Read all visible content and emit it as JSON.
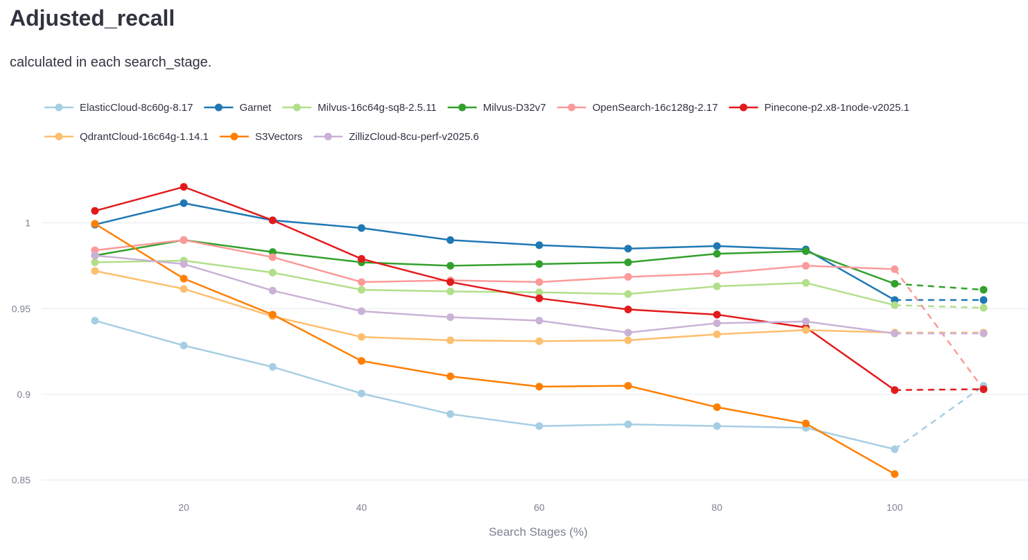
{
  "page": {
    "title": "Adjusted_recall",
    "subtitle": "calculated in each search_stage."
  },
  "chart_data": {
    "type": "line",
    "xlabel": "Search Stages (%)",
    "ylabel": "",
    "xlim": [
      4,
      115
    ],
    "ylim": [
      0.843,
      1.035
    ],
    "x_ticks": [
      20,
      40,
      60,
      80,
      100
    ],
    "y_ticks": [
      0.85,
      0.9,
      0.95,
      1
    ],
    "grid": true,
    "legend_position": "top",
    "x": [
      10,
      20,
      30,
      40,
      50,
      60,
      70,
      80,
      90,
      100
    ],
    "final_x": 110,
    "series": [
      {
        "name": "ElasticCloud-8c60g-8.17",
        "color": "#a6cee3",
        "values": [
          0.943,
          0.9285,
          0.916,
          0.9005,
          0.8885,
          0.8815,
          0.8825,
          0.8815,
          0.8805,
          0.868
        ],
        "final": 0.905
      },
      {
        "name": "Garnet",
        "color": "#1f78b4",
        "values": [
          0.999,
          1.0115,
          1.0015,
          0.997,
          0.99,
          0.987,
          0.985,
          0.9865,
          0.9845,
          0.955
        ],
        "final": 0.955
      },
      {
        "name": "Milvus-16c64g-sq8-2.5.11",
        "color": "#b2df8a",
        "values": [
          0.977,
          0.978,
          0.971,
          0.961,
          0.96,
          0.9595,
          0.9585,
          0.963,
          0.965,
          0.952
        ],
        "final": 0.9505
      },
      {
        "name": "Milvus-D32v7",
        "color": "#33a02c",
        "values": [
          0.981,
          0.99,
          0.983,
          0.977,
          0.975,
          0.976,
          0.977,
          0.982,
          0.9835,
          0.9645
        ],
        "final": 0.961
      },
      {
        "name": "OpenSearch-16c128g-2.17",
        "color": "#fb9a99",
        "values": [
          0.984,
          0.99,
          0.98,
          0.9655,
          0.9665,
          0.9655,
          0.9685,
          0.9705,
          0.975,
          0.973
        ],
        "final": 0.903
      },
      {
        "name": "Pinecone-p2.x8-1node-v2025.1",
        "color": "#e31a1c",
        "values": [
          1.007,
          1.021,
          1.0015,
          0.979,
          0.9655,
          0.956,
          0.9495,
          0.9465,
          0.939,
          0.9025
        ],
        "final": 0.903
      },
      {
        "name": "QdrantCloud-16c64g-1.14.1",
        "color": "#fdbf6f",
        "values": [
          0.972,
          0.9615,
          0.9455,
          0.9335,
          0.9315,
          0.931,
          0.9315,
          0.935,
          0.9375,
          0.936
        ],
        "final": 0.936
      },
      {
        "name": "S3Vectors",
        "color": "#ff7f00",
        "values": [
          0.9995,
          0.9675,
          0.9465,
          0.9195,
          0.9105,
          0.9045,
          0.905,
          0.8925,
          0.883,
          0.8535
        ],
        "final": null
      },
      {
        "name": "ZillizCloud-8cu-perf-v2025.6",
        "color": "#cab2d6",
        "values": [
          0.981,
          0.976,
          0.9605,
          0.9485,
          0.945,
          0.943,
          0.936,
          0.9415,
          0.9425,
          0.9355
        ],
        "final": 0.9355
      }
    ]
  }
}
